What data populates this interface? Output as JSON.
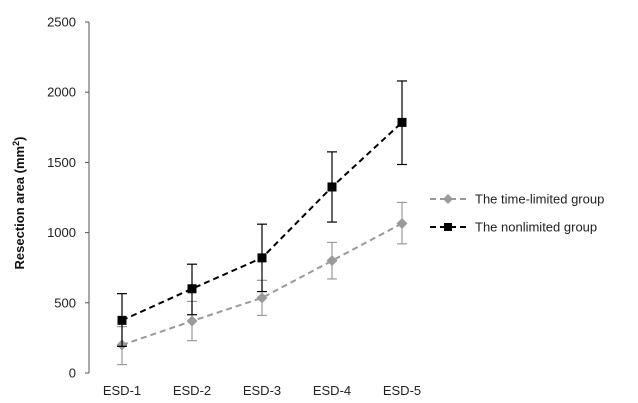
{
  "chart_data": {
    "type": "line",
    "title": "",
    "xlabel": "",
    "ylabel": {
      "main": "Resection area (mm",
      "sup": "2",
      "close": ")"
    },
    "categories": [
      "ESD-1",
      "ESD-2",
      "ESD-3",
      "ESD-4",
      "ESD-5"
    ],
    "ylim": [
      0,
      2500
    ],
    "yticks": [
      0,
      500,
      1000,
      1500,
      2000,
      2500
    ],
    "grid": false,
    "legend_position": "right",
    "series": [
      {
        "name": "The time-limited group",
        "color": "#9a9a9a",
        "marker": "diamond",
        "line_style": "dashed",
        "values": [
          200,
          370,
          535,
          800,
          1065
        ],
        "err_low": [
          60,
          230,
          410,
          670,
          920
        ],
        "err_high": [
          330,
          510,
          660,
          930,
          1215
        ]
      },
      {
        "name": "The nonlimited group",
        "color": "#000000",
        "marker": "square",
        "line_style": "dashed",
        "values": [
          375,
          600,
          820,
          1325,
          1785
        ],
        "err_low": [
          190,
          415,
          580,
          1075,
          1485
        ],
        "err_high": [
          565,
          775,
          1060,
          1575,
          2080
        ]
      }
    ]
  }
}
